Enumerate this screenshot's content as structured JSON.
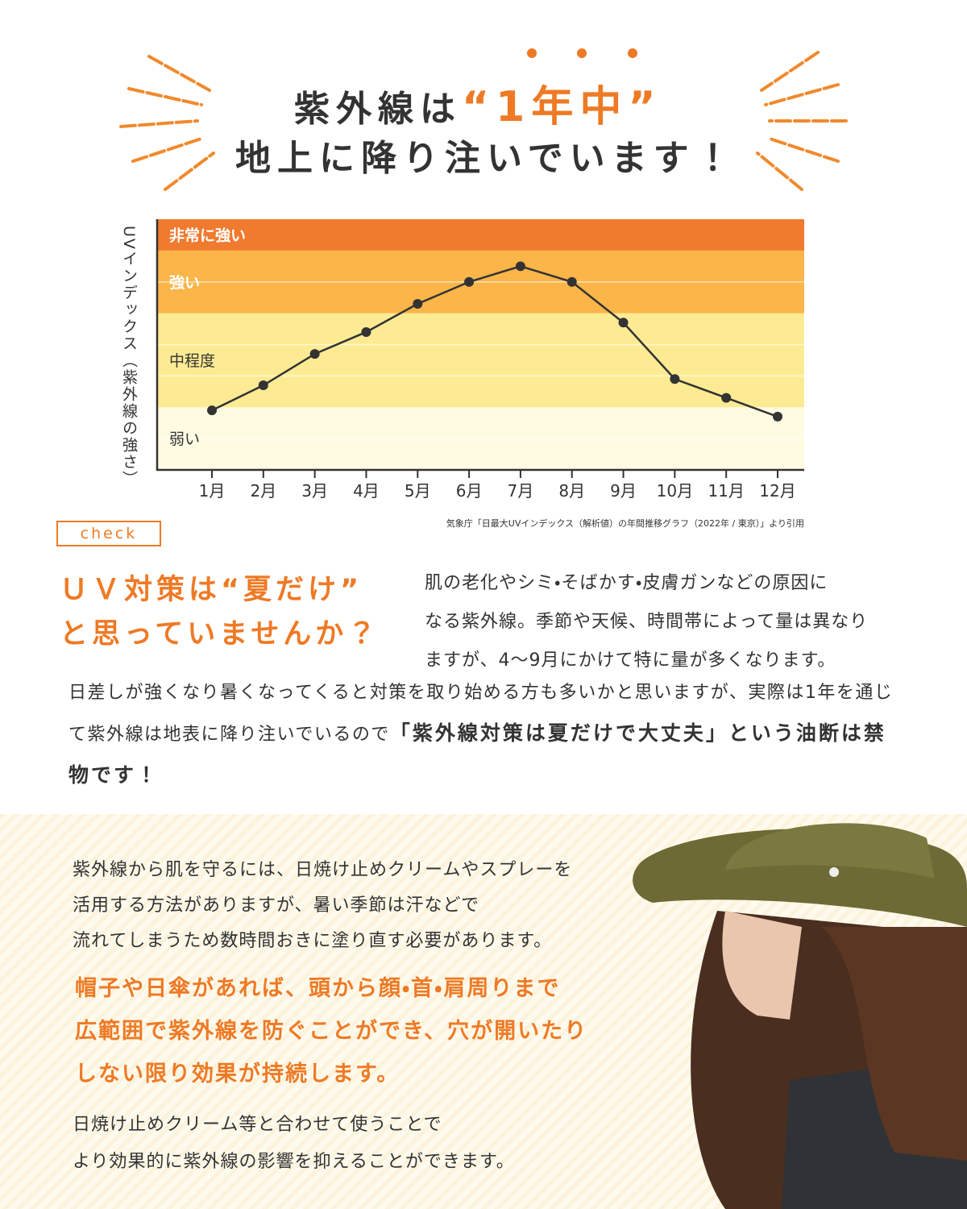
{
  "header": {
    "line1": "紫外線は",
    "highlight": "“1年中”",
    "line2": "地上に降り注いでいます！"
  },
  "chart_data": {
    "type": "line",
    "y_label": "UVインデックス（紫外線の強さ）",
    "categories": [
      "1月",
      "2月",
      "3月",
      "4月",
      "5月",
      "6月",
      "7月",
      "8月",
      "9月",
      "10月",
      "11月",
      "12月"
    ],
    "values": [
      1.9,
      2.7,
      3.7,
      4.4,
      5.3,
      6.0,
      6.5,
      6.0,
      4.7,
      2.9,
      2.3,
      1.7
    ],
    "color": "#333333",
    "ylim": [
      0,
      8
    ],
    "ygrid": [
      1,
      3,
      4,
      6
    ],
    "bands": [
      {
        "label": "弱い",
        "from": 0,
        "to": 2,
        "color": "#fefbe2",
        "label_color": "#333333"
      },
      {
        "label": "中程度",
        "from": 2,
        "to": 5,
        "color": "#fdeb94",
        "label_color": "#333333"
      },
      {
        "label": "強い",
        "from": 5,
        "to": 7,
        "color": "#fbb548",
        "label_color": "#ffffff"
      },
      {
        "label": "非常に強い",
        "from": 7,
        "to": 8,
        "color": "#f07a2e",
        "label_color": "#ffffff"
      }
    ],
    "source": "気象庁「日最大UVインデックス（解析値）の年間推移グラフ（2022年 / 東京）」より引用"
  },
  "check": {
    "badge": "check",
    "heading": [
      "ＵＶ対策は“夏だけ”",
      "と思っていませんか？"
    ],
    "intro": [
      "肌の老化やシミ・そばかす・皮膚ガンなどの原因に",
      "なる紫外線。季節や天候、時間帯によって量は異なり",
      "ますが、4～9月にかけて特に量が多くなります。"
    ]
  },
  "body": {
    "text": "日差しが強くなり暑くなってくると対策を取り始める方も多いかと思いますが、実際は1年を通じて紫外線は地表に降り注いでいるので",
    "emphasis": "「紫外線対策は夏だけで大丈夫」という油断は禁物です！"
  },
  "hat_section": {
    "intro": [
      "紫外線から肌を守るには、日焼け止めクリームやスプレーを",
      "活用する方法がありますが、暑い季節は汗などで",
      "流れてしまうため数時間おきに塗り直す必要があります。"
    ],
    "highlight": [
      "帽子や日傘があれば、頭から顔・首・肩周りまで",
      "広範囲で紫外線を防ぐことができ、穴が開いたり",
      "しない限り効果が持続します。"
    ],
    "closing": [
      "日焼け止めクリーム等と合わせて使うことで",
      "より効果的に紫外線の影響を抑えることができます。"
    ]
  }
}
